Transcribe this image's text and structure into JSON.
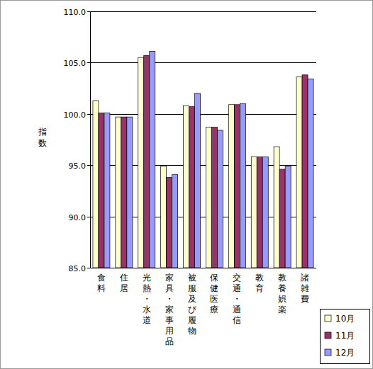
{
  "chart_data": {
    "type": "bar",
    "y_label": "指数",
    "categories": [
      "食料",
      "住居",
      "光熱・水道",
      "家具・家事用品",
      "被服及び履物",
      "保健医療",
      "交通・通信",
      "教育",
      "教養娯楽",
      "諸雑費"
    ],
    "series": [
      {
        "name": "10月",
        "color": "#ffffcc",
        "values": [
          101.3,
          99.7,
          105.5,
          94.9,
          100.8,
          98.7,
          100.9,
          95.8,
          96.8,
          103.6
        ]
      },
      {
        "name": "11月",
        "color": "#993366",
        "values": [
          100.1,
          99.7,
          105.7,
          93.8,
          100.7,
          98.7,
          100.9,
          95.8,
          94.6,
          103.8
        ]
      },
      {
        "name": "12月",
        "color": "#9999ff",
        "values": [
          100.1,
          99.7,
          106.1,
          94.1,
          102.0,
          98.4,
          101.0,
          95.8,
          94.9,
          103.4
        ]
      }
    ],
    "ylim": [
      85,
      110
    ],
    "yticks": [
      {
        "value": 85,
        "label": "85.0"
      },
      {
        "value": 90,
        "label": "90.0"
      },
      {
        "value": 95,
        "label": "95.0"
      },
      {
        "value": 100,
        "label": "100.0"
      },
      {
        "value": 105,
        "label": "105.0"
      },
      {
        "value": 110,
        "label": "110.0"
      }
    ],
    "grid": true,
    "legend": "bottom-right"
  }
}
